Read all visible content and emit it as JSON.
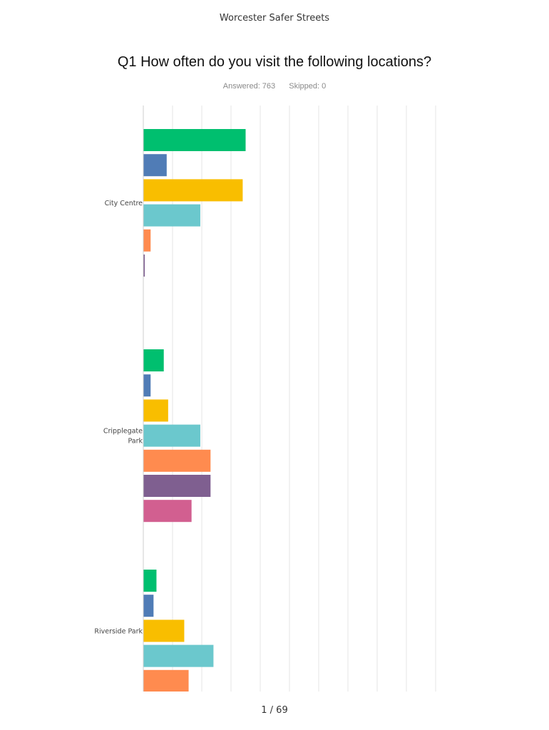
{
  "header": {
    "survey_name": "Worcester Safer Streets"
  },
  "question": {
    "title": "Q1 How often do you visit the following locations?",
    "answered": "Answered: 763",
    "skipped": "Skipped: 0"
  },
  "footer": {
    "page": "1 / 69"
  },
  "colors": [
    "#00bf6f",
    "#507cb6",
    "#f9be00",
    "#6bc8cd",
    "#ff8b4f",
    "#7f5f90",
    "#d25f90"
  ],
  "chart_data": {
    "type": "bar",
    "orientation": "horizontal",
    "grid": true,
    "xlim": [
      0,
      100
    ],
    "groups": [
      {
        "label_lines": [
          "City Centre"
        ],
        "values": [
          35,
          8,
          34,
          19.5,
          2.5,
          0.5
        ]
      },
      {
        "label_lines": [
          "Cripplegate",
          "Park"
        ],
        "values": [
          7,
          2.5,
          8.5,
          19.5,
          23,
          23,
          16.5
        ]
      },
      {
        "label_lines": [
          "Riverside Park"
        ],
        "values": [
          4.5,
          3.5,
          14,
          24,
          15.5
        ]
      }
    ]
  }
}
